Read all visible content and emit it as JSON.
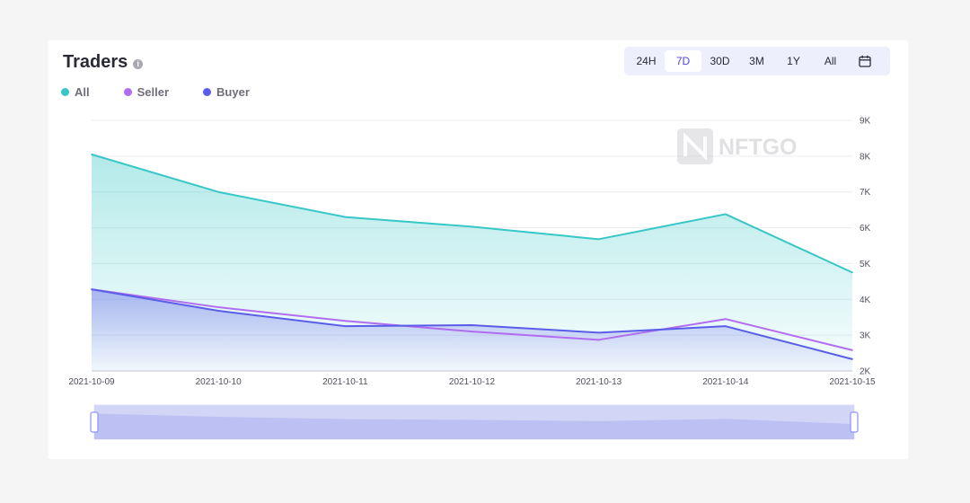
{
  "header": {
    "title": "Traders",
    "info_icon": "info-icon"
  },
  "legend": [
    {
      "label": "All",
      "color": "#36c7c6"
    },
    {
      "label": "Seller",
      "color": "#b16cf0"
    },
    {
      "label": "Buyer",
      "color": "#5a5de8"
    }
  ],
  "range": {
    "options": [
      "24H",
      "7D",
      "30D",
      "3M",
      "1Y",
      "All"
    ],
    "selected": "7D",
    "calendar_icon": "calendar-icon"
  },
  "watermark": {
    "text": "NFTGO"
  },
  "chart_data": {
    "type": "area",
    "x": [
      "2021-10-09",
      "2021-10-10",
      "2021-10-11",
      "2021-10-12",
      "2021-10-13",
      "2021-10-14",
      "2021-10-15"
    ],
    "series": [
      {
        "name": "All",
        "values": [
          8050,
          7000,
          6300,
          6030,
          5680,
          6380,
          4750
        ],
        "color": "#36c7c6"
      },
      {
        "name": "Seller",
        "values": [
          4280,
          3780,
          3400,
          3100,
          2870,
          3450,
          2580
        ],
        "color": "#b16cf0"
      },
      {
        "name": "Buyer",
        "values": [
          4280,
          3680,
          3250,
          3280,
          3070,
          3250,
          2330
        ],
        "color": "#5a5de8"
      }
    ],
    "y_ticks": [
      "2K",
      "3K",
      "4K",
      "5K",
      "6K",
      "7K",
      "8K",
      "9K"
    ],
    "ylim": [
      2000,
      9000
    ],
    "grid": true,
    "legend_position": "top-left",
    "y_axis_position": "right",
    "zoom_slider": {
      "start": 0,
      "end": 1
    }
  }
}
